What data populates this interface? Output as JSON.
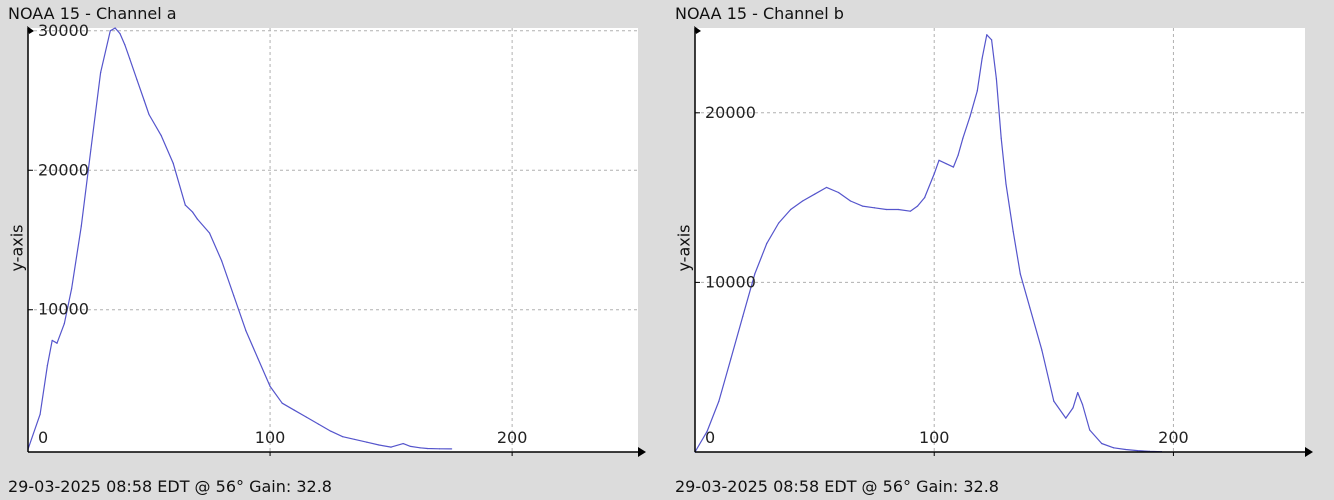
{
  "colors": {
    "background": "#dcdcdc",
    "plot_area": "#ffffff",
    "series": "#5555cc",
    "grid": "#b0b0b0",
    "axis": "#000000"
  },
  "chart_data": [
    {
      "type": "line",
      "title": "NOAA 15 - Channel a",
      "ylabel": "y-axis",
      "footer": "29-03-2025 08:58 EDT @ 56° Gain: 32.8",
      "xlim": [
        0,
        252
      ],
      "ylim": [
        -200,
        30200
      ],
      "x_ticks": [
        0,
        100,
        200
      ],
      "x_tick_labels": [
        "0",
        "100",
        "200"
      ],
      "y_ticks": [
        10000,
        20000,
        30000
      ],
      "y_tick_labels": [
        "10000",
        "20000",
        "30000"
      ],
      "grid": true,
      "x": [
        0,
        5,
        8,
        10,
        12,
        15,
        18,
        22,
        26,
        30,
        34,
        36,
        38,
        40,
        42,
        45,
        48,
        50,
        55,
        60,
        65,
        68,
        70,
        75,
        80,
        85,
        90,
        95,
        100,
        105,
        110,
        115,
        120,
        125,
        130,
        135,
        140,
        145,
        150,
        155,
        158,
        162,
        165,
        170,
        175
      ],
      "values": [
        0,
        2500,
        6000,
        7800,
        7600,
        9000,
        11500,
        16000,
        21500,
        27000,
        30000,
        30200,
        29800,
        29000,
        28000,
        26500,
        25000,
        24000,
        22500,
        20500,
        17500,
        17000,
        16500,
        15500,
        13500,
        11000,
        8500,
        6500,
        4500,
        3300,
        2800,
        2300,
        1800,
        1300,
        900,
        700,
        500,
        300,
        150,
        400,
        200,
        100,
        50,
        30,
        20
      ]
    },
    {
      "type": "line",
      "title": "NOAA 15 - Channel b",
      "ylabel": "y-axis",
      "footer": "29-03-2025 08:58 EDT @ 56° Gain: 32.8",
      "xlim": [
        0,
        255
      ],
      "ylim": [
        0,
        25000
      ],
      "x_ticks": [
        0,
        100,
        200
      ],
      "x_tick_labels": [
        "0",
        "100",
        "200"
      ],
      "y_ticks": [
        10000,
        20000
      ],
      "y_tick_labels": [
        "10000",
        "20000"
      ],
      "grid": true,
      "x": [
        0,
        5,
        10,
        15,
        20,
        25,
        30,
        35,
        40,
        45,
        50,
        55,
        60,
        65,
        70,
        75,
        80,
        85,
        90,
        93,
        96,
        100,
        102,
        105,
        108,
        110,
        112,
        115,
        118,
        120,
        122,
        124,
        126,
        128,
        130,
        133,
        136,
        140,
        145,
        150,
        155,
        158,
        160,
        162,
        165,
        170,
        175,
        180,
        185,
        190,
        195
      ],
      "values": [
        0,
        1200,
        3000,
        5500,
        8000,
        10500,
        12300,
        13500,
        14300,
        14800,
        15200,
        15600,
        15300,
        14800,
        14500,
        14400,
        14300,
        14300,
        14200,
        14500,
        15000,
        16400,
        17200,
        17000,
        16800,
        17500,
        18500,
        19800,
        21300,
        23200,
        24600,
        24300,
        22000,
        18500,
        15800,
        13000,
        10500,
        8500,
        6000,
        3000,
        2000,
        2600,
        3500,
        2800,
        1300,
        500,
        250,
        150,
        80,
        40,
        20
      ]
    }
  ]
}
